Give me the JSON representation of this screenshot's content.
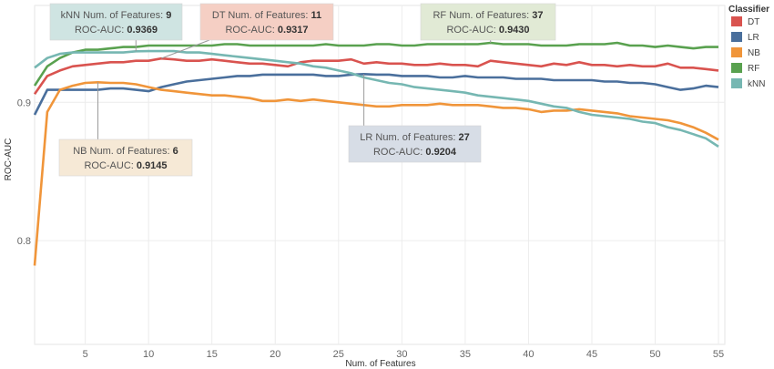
{
  "chart_data": {
    "type": "line",
    "xlabel": "Num. of Features",
    "ylabel": "ROC-AUC",
    "xlim": [
      1,
      55.5
    ],
    "ylim": [
      0.725,
      0.97
    ],
    "x_ticks": [
      5,
      10,
      15,
      20,
      25,
      30,
      35,
      40,
      45,
      50,
      55
    ],
    "y_ticks": [
      0.8,
      0.9
    ],
    "grid": true,
    "legend": {
      "title": "Classifier",
      "position": "top-right"
    },
    "series": [
      {
        "name": "DT",
        "color": "#d9534f",
        "x": [
          1,
          2,
          3,
          4,
          5,
          6,
          7,
          8,
          9,
          10,
          11,
          12,
          13,
          14,
          15,
          16,
          17,
          18,
          19,
          20,
          21,
          22,
          23,
          24,
          25,
          26,
          27,
          28,
          29,
          30,
          31,
          32,
          33,
          34,
          35,
          36,
          37,
          38,
          39,
          40,
          41,
          42,
          43,
          44,
          45,
          46,
          47,
          48,
          49,
          50,
          51,
          52,
          53,
          54,
          55
        ],
        "values": [
          0.906,
          0.919,
          0.923,
          0.926,
          0.927,
          0.928,
          0.929,
          0.929,
          0.93,
          0.93,
          0.9317,
          0.931,
          0.93,
          0.93,
          0.931,
          0.93,
          0.929,
          0.928,
          0.928,
          0.927,
          0.926,
          0.929,
          0.93,
          0.93,
          0.93,
          0.931,
          0.928,
          0.929,
          0.928,
          0.928,
          0.927,
          0.927,
          0.928,
          0.927,
          0.927,
          0.926,
          0.93,
          0.929,
          0.928,
          0.927,
          0.926,
          0.928,
          0.927,
          0.929,
          0.927,
          0.927,
          0.926,
          0.927,
          0.926,
          0.926,
          0.928,
          0.925,
          0.925,
          0.924,
          0.923
        ]
      },
      {
        "name": "LR",
        "color": "#4a6f9c",
        "x": [
          1,
          2,
          3,
          4,
          5,
          6,
          7,
          8,
          9,
          10,
          11,
          12,
          13,
          14,
          15,
          16,
          17,
          18,
          19,
          20,
          21,
          22,
          23,
          24,
          25,
          26,
          27,
          28,
          29,
          30,
          31,
          32,
          33,
          34,
          35,
          36,
          37,
          38,
          39,
          40,
          41,
          42,
          43,
          44,
          45,
          46,
          47,
          48,
          49,
          50,
          51,
          52,
          53,
          54,
          55
        ],
        "values": [
          0.891,
          0.909,
          0.909,
          0.909,
          0.909,
          0.909,
          0.91,
          0.91,
          0.909,
          0.908,
          0.911,
          0.913,
          0.915,
          0.916,
          0.917,
          0.918,
          0.919,
          0.919,
          0.92,
          0.92,
          0.92,
          0.92,
          0.92,
          0.919,
          0.919,
          0.92,
          0.9204,
          0.92,
          0.92,
          0.919,
          0.919,
          0.919,
          0.918,
          0.918,
          0.919,
          0.918,
          0.918,
          0.918,
          0.917,
          0.917,
          0.917,
          0.916,
          0.916,
          0.916,
          0.916,
          0.915,
          0.915,
          0.914,
          0.914,
          0.913,
          0.911,
          0.909,
          0.91,
          0.912,
          0.911
        ]
      },
      {
        "name": "NB",
        "color": "#f0953a",
        "x": [
          1,
          2,
          3,
          4,
          5,
          6,
          7,
          8,
          9,
          10,
          11,
          12,
          13,
          14,
          15,
          16,
          17,
          18,
          19,
          20,
          21,
          22,
          23,
          24,
          25,
          26,
          27,
          28,
          29,
          30,
          31,
          32,
          33,
          34,
          35,
          36,
          37,
          38,
          39,
          40,
          41,
          42,
          43,
          44,
          45,
          46,
          47,
          48,
          49,
          50,
          51,
          52,
          53,
          54,
          55
        ],
        "values": [
          0.782,
          0.893,
          0.909,
          0.912,
          0.914,
          0.9145,
          0.914,
          0.914,
          0.913,
          0.911,
          0.909,
          0.908,
          0.907,
          0.906,
          0.905,
          0.905,
          0.904,
          0.903,
          0.901,
          0.901,
          0.902,
          0.901,
          0.902,
          0.901,
          0.9,
          0.899,
          0.898,
          0.897,
          0.897,
          0.898,
          0.898,
          0.898,
          0.899,
          0.898,
          0.898,
          0.898,
          0.897,
          0.896,
          0.896,
          0.895,
          0.893,
          0.894,
          0.894,
          0.895,
          0.894,
          0.893,
          0.892,
          0.89,
          0.889,
          0.888,
          0.887,
          0.885,
          0.882,
          0.878,
          0.873
        ]
      },
      {
        "name": "RF",
        "color": "#59a14f",
        "x": [
          1,
          2,
          3,
          4,
          5,
          6,
          7,
          8,
          9,
          10,
          11,
          12,
          13,
          14,
          15,
          16,
          17,
          18,
          19,
          20,
          21,
          22,
          23,
          24,
          25,
          26,
          27,
          28,
          29,
          30,
          31,
          32,
          33,
          34,
          35,
          36,
          37,
          38,
          39,
          40,
          41,
          42,
          43,
          44,
          45,
          46,
          47,
          48,
          49,
          50,
          51,
          52,
          53,
          54,
          55
        ],
        "values": [
          0.912,
          0.926,
          0.932,
          0.936,
          0.938,
          0.938,
          0.939,
          0.94,
          0.94,
          0.941,
          0.941,
          0.941,
          0.941,
          0.941,
          0.941,
          0.942,
          0.942,
          0.941,
          0.941,
          0.941,
          0.941,
          0.941,
          0.941,
          0.942,
          0.941,
          0.941,
          0.941,
          0.942,
          0.942,
          0.941,
          0.941,
          0.942,
          0.942,
          0.942,
          0.942,
          0.942,
          0.943,
          0.942,
          0.942,
          0.942,
          0.941,
          0.941,
          0.941,
          0.942,
          0.942,
          0.942,
          0.943,
          0.941,
          0.941,
          0.94,
          0.941,
          0.94,
          0.939,
          0.94,
          0.94
        ]
      },
      {
        "name": "kNN",
        "color": "#76b7b2",
        "x": [
          1,
          2,
          3,
          4,
          5,
          6,
          7,
          8,
          9,
          10,
          11,
          12,
          13,
          14,
          15,
          16,
          17,
          18,
          19,
          20,
          21,
          22,
          23,
          24,
          25,
          26,
          27,
          28,
          29,
          30,
          31,
          32,
          33,
          34,
          35,
          36,
          37,
          38,
          39,
          40,
          41,
          42,
          43,
          44,
          45,
          46,
          47,
          48,
          49,
          50,
          51,
          52,
          53,
          54,
          55
        ],
        "values": [
          0.925,
          0.932,
          0.935,
          0.936,
          0.936,
          0.936,
          0.936,
          0.936,
          0.9369,
          0.937,
          0.937,
          0.937,
          0.936,
          0.936,
          0.935,
          0.934,
          0.933,
          0.932,
          0.931,
          0.93,
          0.929,
          0.928,
          0.926,
          0.925,
          0.923,
          0.921,
          0.918,
          0.916,
          0.914,
          0.913,
          0.911,
          0.91,
          0.909,
          0.908,
          0.907,
          0.905,
          0.904,
          0.903,
          0.902,
          0.901,
          0.899,
          0.897,
          0.896,
          0.893,
          0.891,
          0.89,
          0.889,
          0.888,
          0.886,
          0.885,
          0.882,
          0.88,
          0.877,
          0.874,
          0.868
        ]
      }
    ],
    "annotations": [
      {
        "id": "knn",
        "label": "kNN Num. of Features:",
        "features": "9",
        "metric_label": "ROC-AUC:",
        "metric": "0.9369",
        "bg": "#cfe4e2",
        "series": "kNN",
        "x": 9
      },
      {
        "id": "dt",
        "label": "DT Num. of Features:",
        "features": "11",
        "metric_label": "ROC-AUC:",
        "metric": "0.9317",
        "bg": "#f5cfc4",
        "series": "DT",
        "x": 11
      },
      {
        "id": "rf",
        "label": "RF Num. of Features:",
        "features": "37",
        "metric_label": "ROC-AUC:",
        "metric": "0.9430",
        "bg": "#e1ead5",
        "series": "RF",
        "x": 37
      },
      {
        "id": "nb",
        "label": "NB Num. of Features:",
        "features": "6",
        "metric_label": "ROC-AUC:",
        "metric": "0.9145",
        "bg": "#f6e9d6",
        "series": "NB",
        "x": 6
      },
      {
        "id": "lr",
        "label": "LR Num. of Features:",
        "features": "27",
        "metric_label": "ROC-AUC:",
        "metric": "0.9204",
        "bg": "#d7dde6",
        "series": "LR",
        "x": 27
      }
    ]
  }
}
